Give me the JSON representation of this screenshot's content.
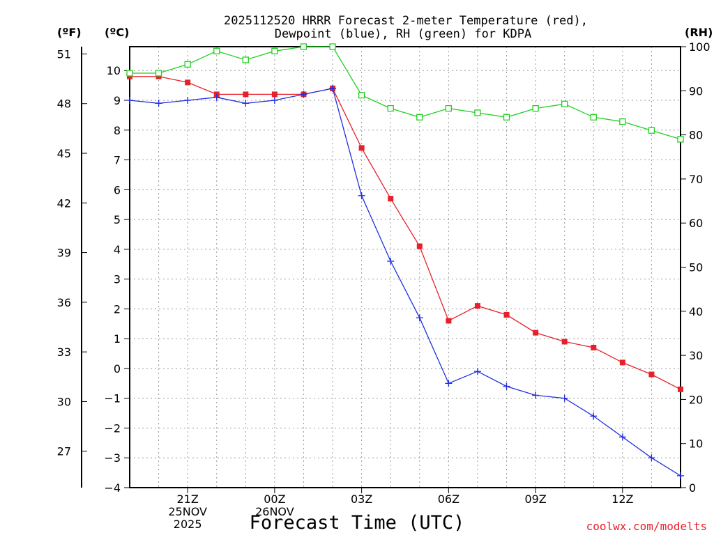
{
  "chart_data": {
    "type": "line",
    "title": "2025112520 HRRR Forecast 2-meter Temperature (red),",
    "subtitle": "Dewpoint (blue), RH (green) for KDPA",
    "xlabel": "Forecast Time (UTC)",
    "left_axis_unit_f": "(ºF)",
    "left_axis_unit_c": "(ºC)",
    "right_axis_unit": "(RH)",
    "watermark": "coolwx.com/modelts",
    "x_hours": [
      19,
      20,
      21,
      22,
      23,
      24,
      25,
      26,
      27,
      28,
      29,
      30,
      31,
      32,
      33,
      34,
      35,
      36,
      37,
      38
    ],
    "xlim": [
      19,
      38
    ],
    "ylim_c": [
      -4,
      10.8
    ],
    "ylim_rh": [
      0,
      100
    ],
    "x_ticks": [
      {
        "hour": 21,
        "lines": [
          "21Z",
          "25NOV",
          "2025"
        ]
      },
      {
        "hour": 24,
        "lines": [
          "00Z",
          "26NOV"
        ]
      },
      {
        "hour": 27,
        "lines": [
          "03Z"
        ]
      },
      {
        "hour": 30,
        "lines": [
          "06Z"
        ]
      },
      {
        "hour": 33,
        "lines": [
          "09Z"
        ]
      },
      {
        "hour": 36,
        "lines": [
          "12Z"
        ]
      }
    ],
    "c_ticks": [
      "10",
      "9",
      "8",
      "7",
      "6",
      "5",
      "4",
      "3",
      "2",
      "1",
      "0",
      "−1",
      "−2",
      "−3",
      "−4"
    ],
    "f_ticks": [
      "51",
      "48",
      "45",
      "42",
      "39",
      "36",
      "33",
      "30",
      "27"
    ],
    "rh_ticks": [
      "100",
      "90",
      "80",
      "70",
      "60",
      "50",
      "40",
      "30",
      "20",
      "10",
      "0"
    ],
    "series": [
      {
        "name": "Temperature",
        "units": "degC",
        "color": "#e8202a",
        "marker": "filled-square",
        "values": [
          9.8,
          9.8,
          9.6,
          9.2,
          9.2,
          9.2,
          9.2,
          9.4,
          7.4,
          5.7,
          4.1,
          1.6,
          2.1,
          1.8,
          1.2,
          0.9,
          0.7,
          0.2,
          -0.2,
          -0.7
        ]
      },
      {
        "name": "Dewpoint",
        "units": "degC",
        "color": "#2030e0",
        "marker": "plus",
        "values": [
          9.0,
          8.9,
          9.0,
          9.1,
          8.9,
          9.0,
          9.2,
          9.4,
          5.8,
          3.6,
          1.7,
          -0.5,
          -0.1,
          -0.6,
          -0.9,
          -1.0,
          -1.6,
          -2.3,
          -3.0,
          -3.6
        ]
      },
      {
        "name": "RH",
        "units": "percent",
        "color": "#20d020",
        "marker": "open-square",
        "values": [
          94,
          94,
          96,
          99,
          97,
          99,
          100,
          100,
          89,
          86,
          84,
          86,
          85,
          84,
          86,
          87,
          84,
          83,
          81,
          79
        ]
      }
    ]
  }
}
